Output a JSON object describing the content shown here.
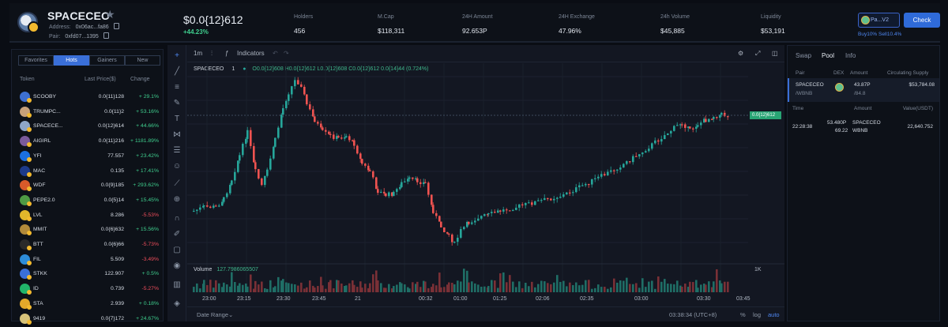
{
  "header": {
    "token": "SPACECEO",
    "address_label": "Address:",
    "address": "0x06ac...fa86",
    "pair_label": "Pair:",
    "pair": "0xfd07...1395",
    "price": "$0.0{12}612",
    "change": "+44.23%",
    "stats": [
      {
        "label": "Holders",
        "value": "456"
      },
      {
        "label": "M.Cap",
        "value": "$118,311"
      },
      {
        "label": "24H Amount",
        "value": "92.653P"
      },
      {
        "label": "24H Exchange",
        "value": "47.96%"
      },
      {
        "label": "24h Volume",
        "value": "$45,885"
      },
      {
        "label": "Liquidity",
        "value": "$53,191"
      }
    ],
    "pool_label": "Pa...V2",
    "check_label": "Check",
    "taxes": "Buy10% Sell10.4%"
  },
  "list": {
    "tabs": [
      "Favorites",
      "Hots",
      "Gainers",
      "New"
    ],
    "active_tab": 1,
    "headers": {
      "token": "Token",
      "price": "Last Price($)",
      "change": "Change"
    },
    "rows": [
      {
        "name": "SCOOBY",
        "price": "0.0{11}128",
        "change": "+ 29.1%",
        "up": true,
        "color": "#3d6fd0"
      },
      {
        "name": "TRUMPC...",
        "price": "0.0{11}2",
        "change": "+ 53.16%",
        "up": true,
        "color": "#c8a17a"
      },
      {
        "name": "SPACECE...",
        "price": "0.0{12}614",
        "change": "+ 44.66%",
        "up": true,
        "color": "#8ea6c8"
      },
      {
        "name": "AIGIRL",
        "price": "0.0{11}216",
        "change": "+ 1181.89%",
        "up": true,
        "color": "#7a5a9a"
      },
      {
        "name": "YFI",
        "price": "77.557",
        "change": "+ 23.42%",
        "up": true,
        "color": "#1b6fe0"
      },
      {
        "name": "MAC",
        "price": "0.135",
        "change": "+ 17.41%",
        "up": true,
        "color": "#1d3a8a"
      },
      {
        "name": "WDF",
        "price": "0.0{9}185",
        "change": "+ 293.62%",
        "up": true,
        "color": "#d85a2a"
      },
      {
        "name": "PEPE2.0",
        "price": "0.0{5}14",
        "change": "+ 15.45%",
        "up": true,
        "color": "#4e9a44"
      },
      {
        "name": "LVL",
        "price": "8.286",
        "change": "-5.53%",
        "up": false,
        "color": "#e0b62b"
      },
      {
        "name": "MMIT",
        "price": "0.0{6}632",
        "change": "+ 15.56%",
        "up": true,
        "color": "#b28a3a"
      },
      {
        "name": "BTT",
        "price": "0.0{6}66",
        "change": "-5.73%",
        "up": false,
        "color": "#2a2a2a"
      },
      {
        "name": "FIL",
        "price": "5.509",
        "change": "-3.49%",
        "up": false,
        "color": "#2d8cd8"
      },
      {
        "name": "STKK",
        "price": "122.907",
        "change": "+ 0.5%",
        "up": true,
        "color": "#3a6fd8"
      },
      {
        "name": "ID",
        "price": "0.739",
        "change": "-5.27%",
        "up": false,
        "color": "#21b46a"
      },
      {
        "name": "STA",
        "price": "2.939",
        "change": "+ 0.18%",
        "up": true,
        "color": "#e3a82a"
      },
      {
        "name": "9419",
        "price": "0.0{7}172",
        "change": "+ 24.67%",
        "up": true,
        "color": "#d7c37a"
      }
    ]
  },
  "chart": {
    "intervals": "1m",
    "indicators_label": "Indicators",
    "symbol": "SPACECEO",
    "interval_num": "1",
    "ohlc": "O0.0{12}608 H0.0{12}612 L0.0{12}608 C0.0{12}612 0.0{14}44 (0.724%)",
    "volume_label": "Volume",
    "volume_value": "127.7986065507",
    "price_tag": "0.0{12}612",
    "vol_tag": "1K",
    "time_ticks": [
      "23:00",
      "23:15",
      "23:30",
      "23:45",
      "21",
      "00:32",
      "01:00",
      "01:25",
      "02:06",
      "02:35",
      "03:00",
      "03:30",
      "03:45"
    ],
    "date_range_label": "Date Range",
    "clock": "03:38:34 (UTC+8)",
    "pct_label": "%",
    "log_label": "log",
    "auto_label": "auto",
    "up_color": "#26a69a",
    "down_color": "#ef5350"
  },
  "pool": {
    "tabs": [
      "Swap",
      "Pool",
      "Info"
    ],
    "active_tab": 1,
    "headers": {
      "pair": "Pair",
      "dex": "DEX",
      "amount": "Amount",
      "supply": "Circulating Supply"
    },
    "row": {
      "pair": "SPACECEO",
      "pair_sub": "/WBNB",
      "amount": "43.87P",
      "amount_sub": "/84.8",
      "supply": "$53,784.08"
    },
    "tx_headers": {
      "time": "Time",
      "amount": "Amount",
      "value": "Value(USDT)"
    },
    "tx": {
      "time": "22:28:38",
      "amount1": "53.480P",
      "token1": "SPACECEO",
      "amount2": "69.22",
      "token2": "WBNB",
      "value": "22,640.752"
    }
  }
}
